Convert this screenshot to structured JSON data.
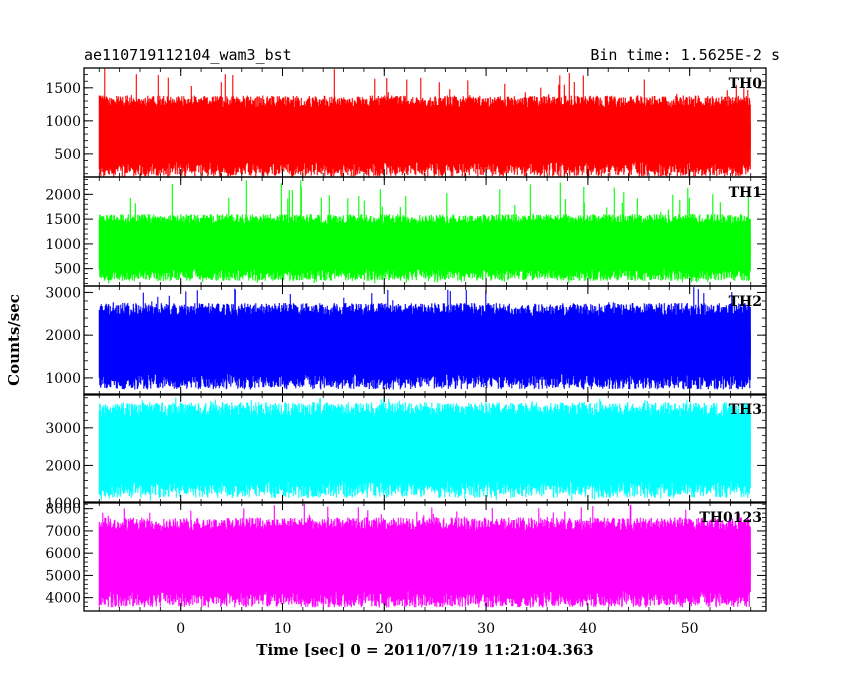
{
  "header": {
    "title": "ae110719112104_wam3_bst",
    "bin_time": "Bin time: 1.5625E-2 s"
  },
  "chart_data": {
    "type": "line",
    "title": "ae110719112104_wam3_bst",
    "xlabel": "Time [sec] 0 = 2011/07/19 11:21:04.363",
    "ylabel": "Counts/sec",
    "xlim": [
      -9.5,
      57.5
    ],
    "x_ticks": [
      0,
      10,
      20,
      30,
      40,
      50
    ],
    "x_data_range": [
      -8,
      56
    ],
    "grid": false,
    "panels": [
      {
        "name": "TH0",
        "color": "#ff0000",
        "ylim": [
          150,
          1800
        ],
        "y_ticks": [
          500,
          1000,
          1500
        ],
        "band_low": 380,
        "band_high": 1200,
        "spike_max": 1800,
        "dip_min": 150
      },
      {
        "name": "TH1",
        "color": "#00ff00",
        "ylim": [
          150,
          2350
        ],
        "y_ticks": [
          500,
          1000,
          1500,
          2000
        ],
        "band_low": 500,
        "band_high": 1400,
        "spike_max": 2300,
        "dip_min": 200
      },
      {
        "name": "TH2",
        "color": "#0000ff",
        "ylim": [
          600,
          3150
        ],
        "y_ticks": [
          1000,
          2000,
          3000
        ],
        "band_low": 1100,
        "band_high": 2450,
        "spike_max": 3150,
        "dip_min": 800
      },
      {
        "name": "TH3",
        "color": "#00ffff",
        "ylim": [
          1000,
          3900
        ],
        "y_ticks": [
          1000,
          2000,
          3000
        ],
        "band_low": 1600,
        "band_high": 3300,
        "spike_max": 3900,
        "dip_min": 1050
      },
      {
        "name": "TH0123",
        "color": "#ff00ff",
        "ylim": [
          3400,
          8300
        ],
        "y_ticks": [
          4000,
          5000,
          6000,
          7000,
          8000
        ],
        "band_low": 4300,
        "band_high": 7000,
        "spike_max": 8300,
        "dip_min": 3550
      }
    ]
  }
}
